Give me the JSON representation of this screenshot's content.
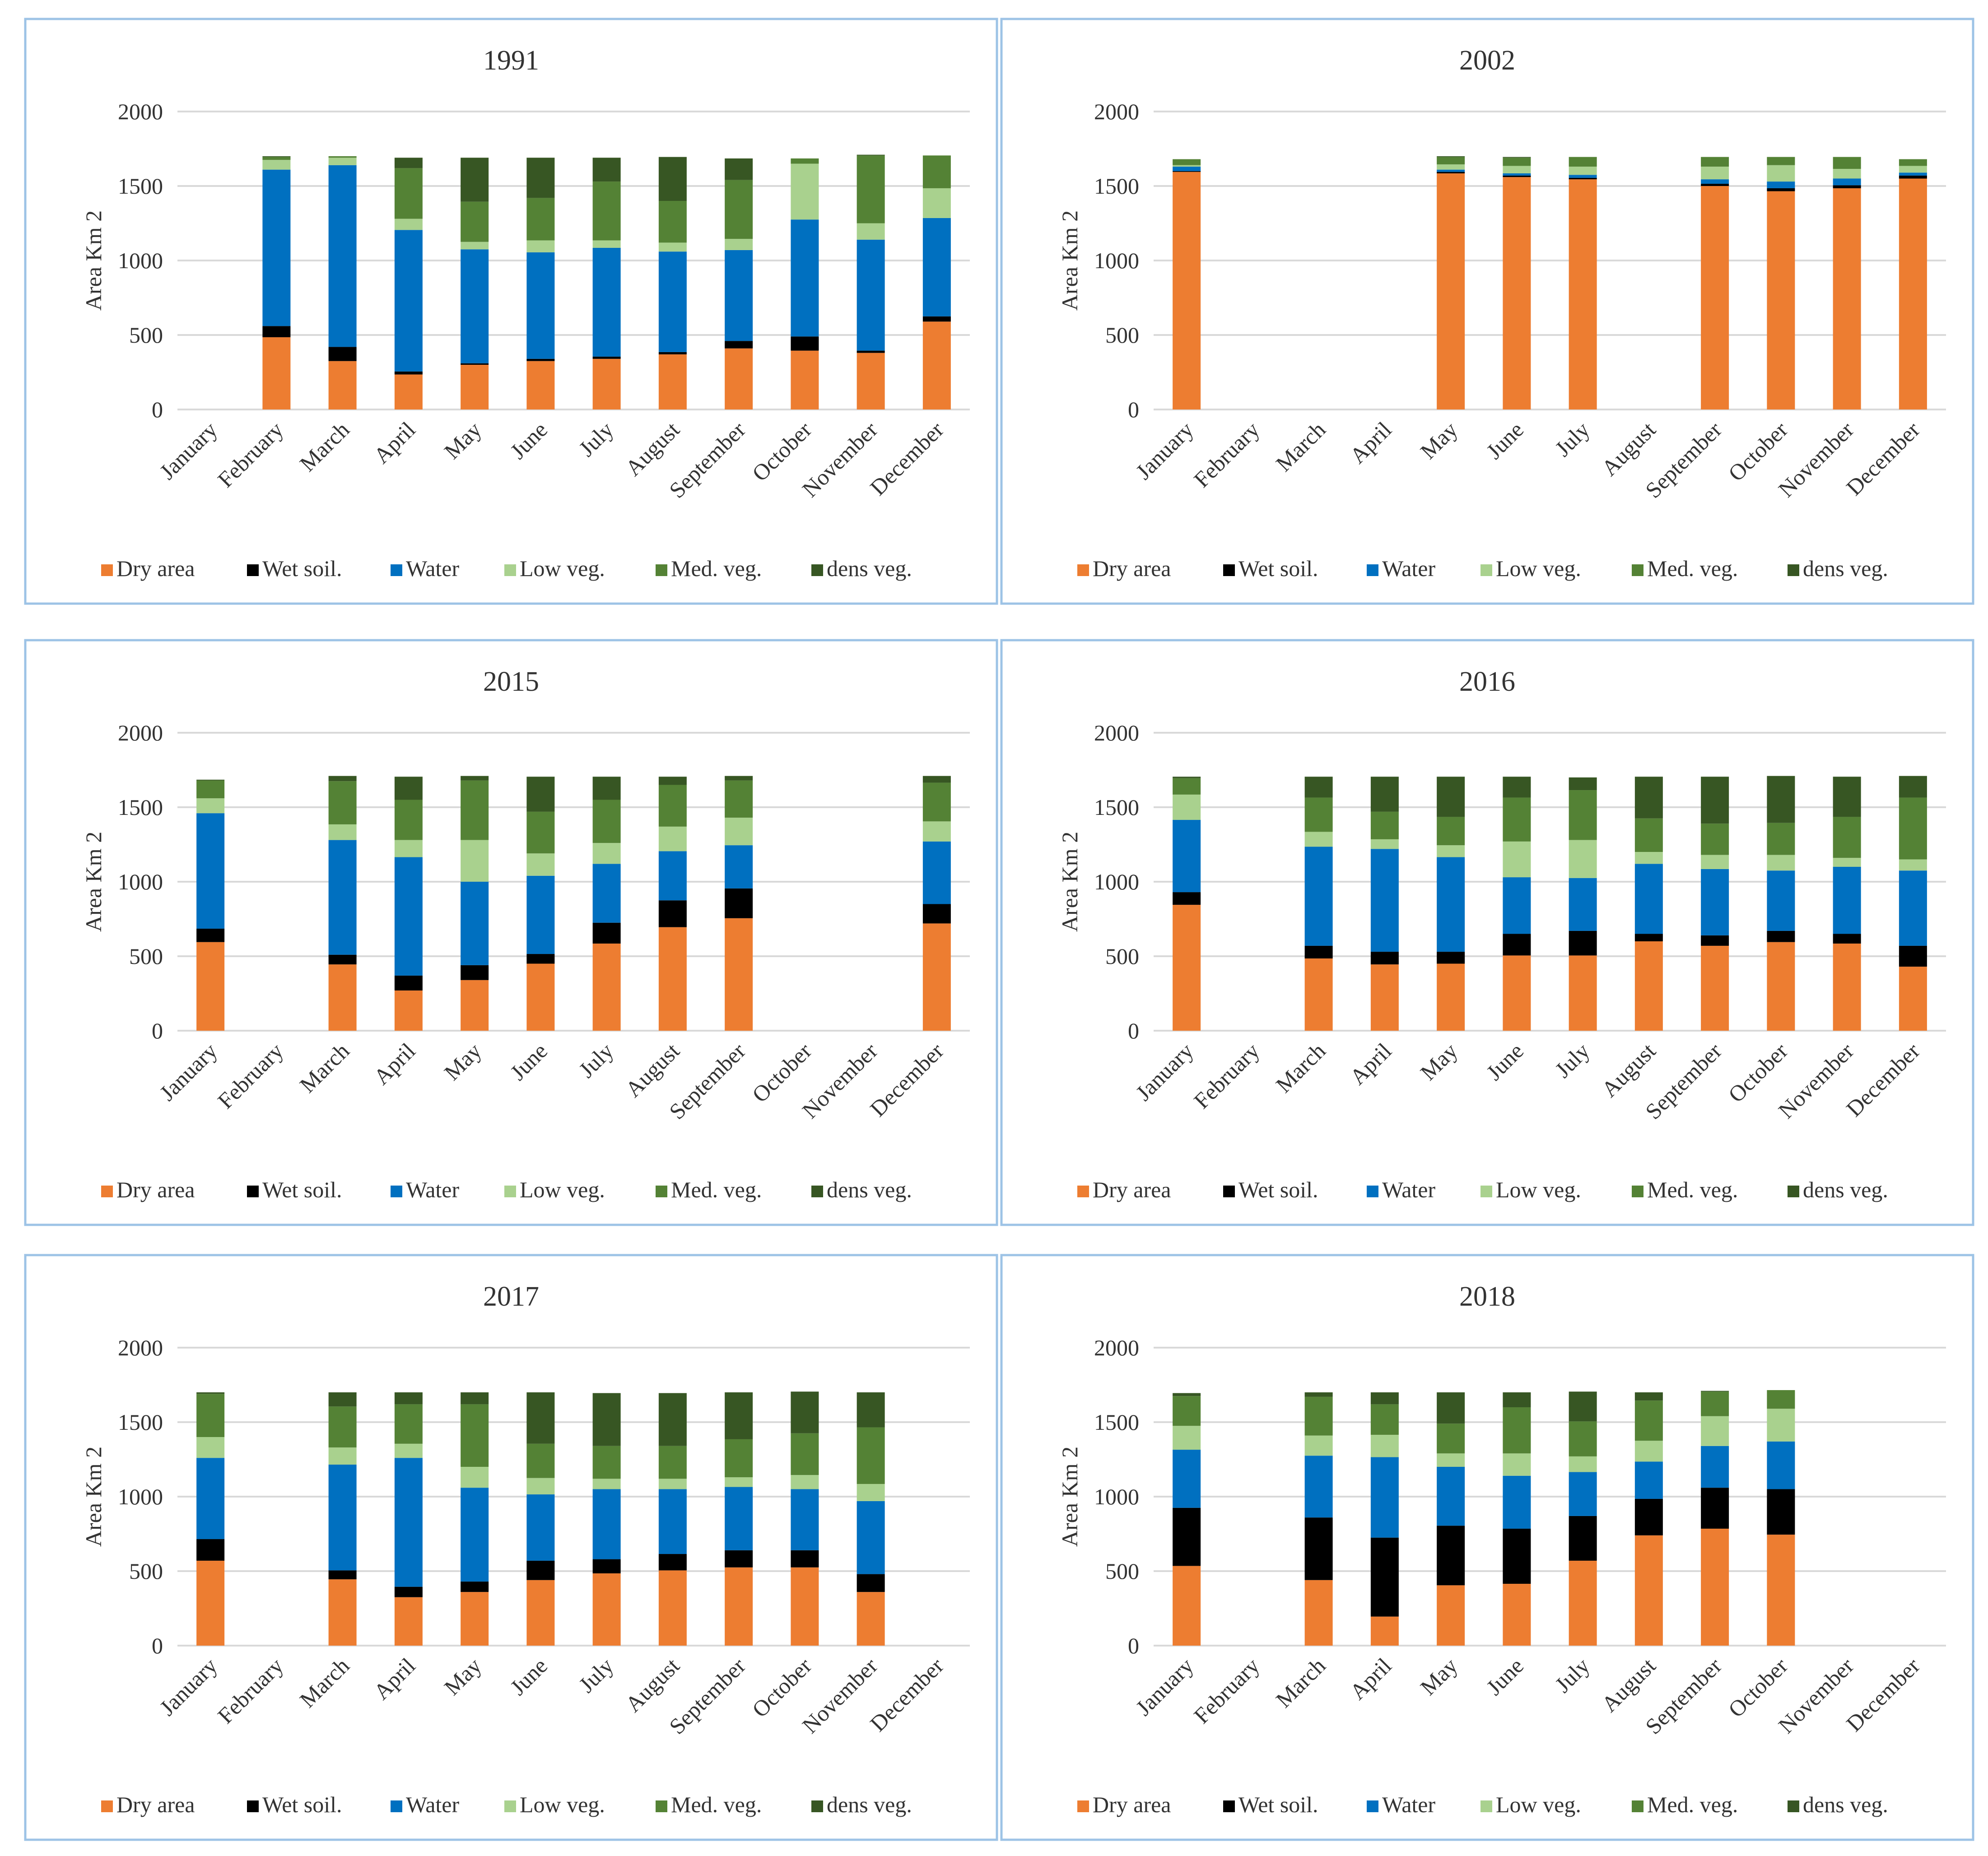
{
  "legend": [
    {
      "name": "Dry area",
      "color": "#ED7D31"
    },
    {
      "name": "Wet soil.",
      "color": "#000000"
    },
    {
      "name": "Water",
      "color": "#0070C0"
    },
    {
      "name": "Low veg.",
      "color": "#A9D18E"
    },
    {
      "name": "Med. veg.",
      "color": "#548235"
    },
    {
      "name": "dens veg.",
      "color": "#375623"
    }
  ],
  "chart_data": [
    {
      "type": "bar",
      "stacked": true,
      "title": "1991",
      "ylabel": "Area Km 2",
      "xlabel": "",
      "ylim": [
        0,
        2000
      ],
      "yticks": [
        0,
        500,
        1000,
        1500,
        2000
      ],
      "grid": true,
      "legend_position": "bottom",
      "categories": [
        "January",
        "February",
        "March",
        "April",
        "May",
        "June",
        "July",
        "August",
        "September",
        "October",
        "November",
        "December"
      ],
      "series": [
        {
          "name": "Dry area",
          "values": [
            null,
            485,
            325,
            235,
            300,
            325,
            340,
            370,
            410,
            395,
            380,
            590
          ]
        },
        {
          "name": "Wet soil.",
          "values": [
            null,
            75,
            95,
            20,
            10,
            15,
            15,
            15,
            50,
            95,
            15,
            35
          ]
        },
        {
          "name": "Water",
          "values": [
            null,
            1050,
            1220,
            950,
            765,
            715,
            730,
            675,
            610,
            785,
            745,
            660
          ]
        },
        {
          "name": "Low veg.",
          "values": [
            null,
            65,
            50,
            75,
            50,
            80,
            50,
            60,
            75,
            375,
            110,
            200
          ]
        },
        {
          "name": "Med. veg.",
          "values": [
            null,
            20,
            10,
            340,
            270,
            285,
            395,
            280,
            395,
            35,
            455,
            220
          ]
        },
        {
          "name": "dens veg.",
          "values": [
            null,
            5,
            0,
            70,
            295,
            270,
            160,
            295,
            145,
            0,
            5,
            0
          ]
        }
      ]
    },
    {
      "type": "bar",
      "stacked": true,
      "title": "2002",
      "ylabel": "Area Km 2",
      "xlabel": "",
      "ylim": [
        0,
        2000
      ],
      "yticks": [
        0,
        500,
        1000,
        1500,
        2000
      ],
      "grid": true,
      "legend_position": "bottom",
      "categories": [
        "January",
        "February",
        "March",
        "April",
        "May",
        "June",
        "July",
        "August",
        "September",
        "October",
        "November",
        "December"
      ],
      "series": [
        {
          "name": "Dry area",
          "values": [
            1595,
            null,
            null,
            null,
            1585,
            1560,
            1545,
            null,
            1500,
            1465,
            1485,
            1550
          ]
        },
        {
          "name": "Wet soil.",
          "values": [
            5,
            null,
            null,
            null,
            10,
            10,
            10,
            null,
            15,
            20,
            20,
            20
          ]
        },
        {
          "name": "Water",
          "values": [
            30,
            null,
            null,
            null,
            15,
            15,
            20,
            null,
            30,
            45,
            45,
            20
          ]
        },
        {
          "name": "Low veg.",
          "values": [
            10,
            null,
            null,
            null,
            35,
            50,
            55,
            null,
            85,
            110,
            65,
            45
          ]
        },
        {
          "name": "Med. veg.",
          "values": [
            40,
            null,
            null,
            null,
            50,
            55,
            65,
            null,
            65,
            55,
            80,
            45
          ]
        },
        {
          "name": "dens veg.",
          "values": [
            0,
            null,
            null,
            null,
            5,
            5,
            0,
            null,
            0,
            0,
            0,
            0
          ]
        }
      ]
    },
    {
      "type": "bar",
      "stacked": true,
      "title": "2015",
      "ylabel": "Area Km 2",
      "xlabel": "",
      "ylim": [
        0,
        2000
      ],
      "yticks": [
        0,
        500,
        1000,
        1500,
        2000
      ],
      "grid": true,
      "legend_position": "bottom",
      "categories": [
        "January",
        "February",
        "March",
        "April",
        "May",
        "June",
        "July",
        "August",
        "September",
        "October",
        "November",
        "December"
      ],
      "series": [
        {
          "name": "Dry area",
          "values": [
            595,
            null,
            445,
            270,
            340,
            450,
            585,
            695,
            755,
            null,
            null,
            720
          ]
        },
        {
          "name": "Wet soil.",
          "values": [
            90,
            null,
            65,
            100,
            100,
            65,
            140,
            180,
            200,
            null,
            null,
            130
          ]
        },
        {
          "name": "Water",
          "values": [
            775,
            null,
            770,
            795,
            560,
            525,
            395,
            330,
            290,
            null,
            null,
            420
          ]
        },
        {
          "name": "Low veg.",
          "values": [
            100,
            null,
            105,
            115,
            280,
            150,
            140,
            165,
            185,
            null,
            null,
            135
          ]
        },
        {
          "name": "Med. veg.",
          "values": [
            120,
            null,
            290,
            270,
            400,
            280,
            290,
            280,
            250,
            null,
            null,
            260
          ]
        },
        {
          "name": "dens veg.",
          "values": [
            5,
            null,
            35,
            155,
            30,
            235,
            155,
            55,
            30,
            null,
            null,
            45
          ]
        }
      ]
    },
    {
      "type": "bar",
      "stacked": true,
      "title": "2016",
      "ylabel": "Area Km 2",
      "xlabel": "",
      "ylim": [
        0,
        2000
      ],
      "yticks": [
        0,
        500,
        1000,
        1500,
        2000
      ],
      "grid": true,
      "legend_position": "bottom",
      "categories": [
        "January",
        "February",
        "March",
        "April",
        "May",
        "June",
        "July",
        "August",
        "September",
        "October",
        "November",
        "December"
      ],
      "series": [
        {
          "name": "Dry area",
          "values": [
            845,
            null,
            485,
            445,
            450,
            505,
            505,
            600,
            570,
            595,
            585,
            430
          ]
        },
        {
          "name": "Wet soil.",
          "values": [
            85,
            null,
            85,
            85,
            80,
            145,
            165,
            50,
            70,
            75,
            65,
            140
          ]
        },
        {
          "name": "Water",
          "values": [
            485,
            null,
            665,
            690,
            635,
            380,
            355,
            470,
            445,
            405,
            450,
            505
          ]
        },
        {
          "name": "Low veg.",
          "values": [
            170,
            null,
            100,
            65,
            80,
            240,
            255,
            80,
            95,
            105,
            60,
            75
          ]
        },
        {
          "name": "Med. veg.",
          "values": [
            110,
            null,
            230,
            185,
            190,
            295,
            335,
            225,
            210,
            215,
            275,
            415
          ]
        },
        {
          "name": "dens veg.",
          "values": [
            10,
            null,
            140,
            235,
            270,
            140,
            85,
            280,
            315,
            315,
            270,
            145
          ]
        }
      ]
    },
    {
      "type": "bar",
      "stacked": true,
      "title": "2017",
      "ylabel": "Area Km 2",
      "xlabel": "",
      "ylim": [
        0,
        2000
      ],
      "yticks": [
        0,
        500,
        1000,
        1500,
        2000
      ],
      "grid": true,
      "legend_position": "bottom",
      "categories": [
        "January",
        "February",
        "March",
        "April",
        "May",
        "June",
        "July",
        "August",
        "September",
        "October",
        "November",
        "December"
      ],
      "series": [
        {
          "name": "Dry area",
          "values": [
            570,
            null,
            445,
            325,
            360,
            440,
            485,
            505,
            525,
            525,
            360,
            null
          ]
        },
        {
          "name": "Wet soil.",
          "values": [
            145,
            null,
            60,
            70,
            70,
            130,
            95,
            110,
            115,
            115,
            120,
            null
          ]
        },
        {
          "name": "Water",
          "values": [
            545,
            null,
            710,
            865,
            630,
            445,
            470,
            435,
            425,
            410,
            490,
            null
          ]
        },
        {
          "name": "Low veg.",
          "values": [
            140,
            null,
            115,
            95,
            140,
            110,
            70,
            70,
            65,
            95,
            115,
            null
          ]
        },
        {
          "name": "Med. veg.",
          "values": [
            290,
            null,
            275,
            265,
            420,
            230,
            220,
            220,
            255,
            280,
            380,
            null
          ]
        },
        {
          "name": "dens veg.",
          "values": [
            10,
            null,
            95,
            80,
            80,
            345,
            355,
            355,
            315,
            280,
            235,
            null
          ]
        }
      ]
    },
    {
      "type": "bar",
      "stacked": true,
      "title": "2018",
      "ylabel": "Area Km 2",
      "xlabel": "",
      "ylim": [
        0,
        2000
      ],
      "yticks": [
        0,
        500,
        1000,
        1500,
        2000
      ],
      "grid": true,
      "legend_position": "bottom",
      "categories": [
        "January",
        "February",
        "March",
        "April",
        "May",
        "June",
        "July",
        "August",
        "September",
        "October",
        "November",
        "December"
      ],
      "series": [
        {
          "name": "Dry area",
          "values": [
            535,
            null,
            440,
            195,
            405,
            415,
            570,
            740,
            785,
            745,
            null,
            null
          ]
        },
        {
          "name": "Wet soil.",
          "values": [
            390,
            null,
            420,
            530,
            400,
            370,
            300,
            245,
            275,
            305,
            null,
            null
          ]
        },
        {
          "name": "Water",
          "values": [
            390,
            null,
            415,
            540,
            395,
            355,
            295,
            250,
            280,
            320,
            null,
            null
          ]
        },
        {
          "name": "Low veg.",
          "values": [
            160,
            null,
            135,
            150,
            90,
            150,
            105,
            140,
            200,
            220,
            null,
            null
          ]
        },
        {
          "name": "Med. veg.",
          "values": [
            200,
            null,
            260,
            205,
            200,
            310,
            235,
            270,
            165,
            125,
            null,
            null
          ]
        },
        {
          "name": "dens veg.",
          "values": [
            20,
            null,
            30,
            80,
            210,
            100,
            200,
            55,
            5,
            0,
            null,
            null
          ]
        }
      ]
    }
  ]
}
